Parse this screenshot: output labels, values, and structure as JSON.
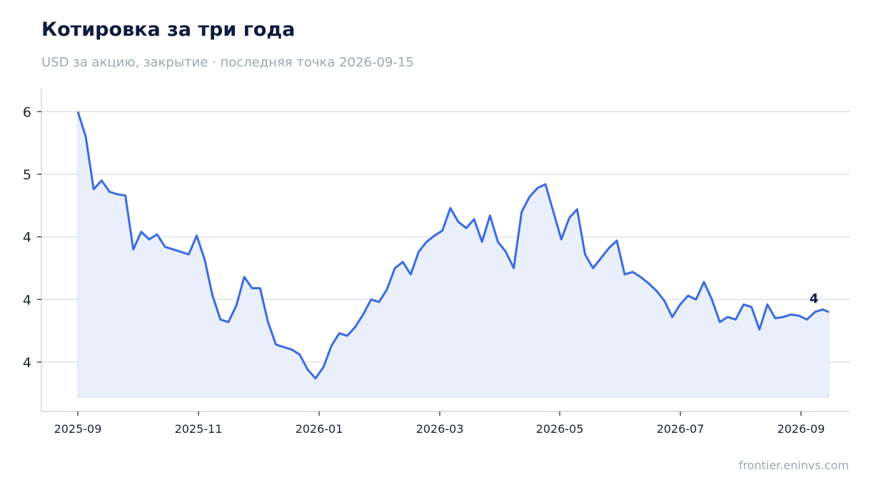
{
  "header": {
    "title": "Котировка за три года",
    "subtitle": "USD за акцию, закрытие · последняя точка 2026-09-15"
  },
  "footer": {
    "source": "frontier.eninvs.com"
  },
  "colors": {
    "line": "#3b6be0",
    "fill": "#e9effb",
    "grid": "#dde3ec",
    "axis": "#cfd6df"
  },
  "chart_data": {
    "type": "area",
    "title": "Котировка за три года",
    "subtitle": "USD за акцию, закрытие · последняя точка 2026-09-15",
    "xlabel": "",
    "ylabel": "",
    "grid": true,
    "legend": "none",
    "x_ticks": [
      "2025-09",
      "2025-11",
      "2026-01",
      "2026-03",
      "2026-05",
      "2026-07",
      "2026-09"
    ],
    "y_ticks": [
      3.5,
      4.0,
      4.5,
      5.0,
      5.5
    ],
    "y_tick_labels": [
      "4",
      "4",
      "4",
      "5",
      "6"
    ],
    "ylim": [
      3.22,
      5.57
    ],
    "last_point_label": "4",
    "series": [
      {
        "x": [
          "2025-09-01",
          "2025-09-05",
          "2025-09-09",
          "2025-09-13",
          "2025-09-17",
          "2025-09-21",
          "2025-09-25",
          "2025-09-29",
          "2025-10-03",
          "2025-10-07",
          "2025-10-11",
          "2025-10-15",
          "2025-10-19",
          "2025-10-23",
          "2025-10-27",
          "2025-10-31",
          "2025-11-04",
          "2025-11-08",
          "2025-11-12",
          "2025-11-16",
          "2025-11-20",
          "2025-11-24",
          "2025-11-28",
          "2025-12-02",
          "2025-12-06",
          "2025-12-10",
          "2025-12-14",
          "2025-12-18",
          "2025-12-22",
          "2025-12-26",
          "2025-12-30",
          "2026-01-03",
          "2026-01-07",
          "2026-01-11",
          "2026-01-15",
          "2026-01-19",
          "2026-01-23",
          "2026-01-27",
          "2026-01-31",
          "2026-02-04",
          "2026-02-08",
          "2026-02-12",
          "2026-02-16",
          "2026-02-20",
          "2026-02-24",
          "2026-02-28",
          "2026-03-04",
          "2026-03-08",
          "2026-03-12",
          "2026-03-16",
          "2026-03-20",
          "2026-03-24",
          "2026-03-28",
          "2026-04-01",
          "2026-04-05",
          "2026-04-09",
          "2026-04-13",
          "2026-04-17",
          "2026-04-21",
          "2026-04-25",
          "2026-04-29",
          "2026-05-03",
          "2026-05-07",
          "2026-05-11",
          "2026-05-15",
          "2026-05-19",
          "2026-05-23",
          "2026-05-27",
          "2026-05-31",
          "2026-06-04",
          "2026-06-08",
          "2026-06-12",
          "2026-06-16",
          "2026-06-20",
          "2026-06-24",
          "2026-06-28",
          "2026-07-02",
          "2026-07-06",
          "2026-07-10",
          "2026-07-14",
          "2026-07-18",
          "2026-07-22",
          "2026-07-26",
          "2026-07-30",
          "2026-08-03",
          "2026-08-07",
          "2026-08-11",
          "2026-08-15",
          "2026-08-19",
          "2026-08-23",
          "2026-08-27",
          "2026-08-31",
          "2026-09-04",
          "2026-09-08",
          "2026-09-12",
          "2026-09-15"
        ],
        "values": [
          5.5,
          5.3,
          4.88,
          4.95,
          4.86,
          4.84,
          4.83,
          4.4,
          4.54,
          4.48,
          4.52,
          4.42,
          4.4,
          4.38,
          4.36,
          4.51,
          4.32,
          4.03,
          3.84,
          3.82,
          3.95,
          4.18,
          4.09,
          4.09,
          3.82,
          3.64,
          3.62,
          3.6,
          3.56,
          3.44,
          3.37,
          3.46,
          3.63,
          3.73,
          3.71,
          3.78,
          3.88,
          4.0,
          3.98,
          4.08,
          4.25,
          4.3,
          4.2,
          4.38,
          4.46,
          4.51,
          4.55,
          4.73,
          4.62,
          4.57,
          4.64,
          4.46,
          4.67,
          4.46,
          4.38,
          4.25,
          4.7,
          4.82,
          4.89,
          4.92,
          4.7,
          4.48,
          4.65,
          4.72,
          4.36,
          4.25,
          4.33,
          4.41,
          4.47,
          4.2,
          4.22,
          4.18,
          4.13,
          4.07,
          3.99,
          3.86,
          3.96,
          4.03,
          4.0,
          4.14,
          4.0,
          3.82,
          3.86,
          3.84,
          3.96,
          3.94,
          3.76,
          3.96,
          3.85,
          3.86,
          3.88,
          3.87,
          3.84,
          3.9,
          3.92,
          3.9
        ]
      }
    ]
  }
}
